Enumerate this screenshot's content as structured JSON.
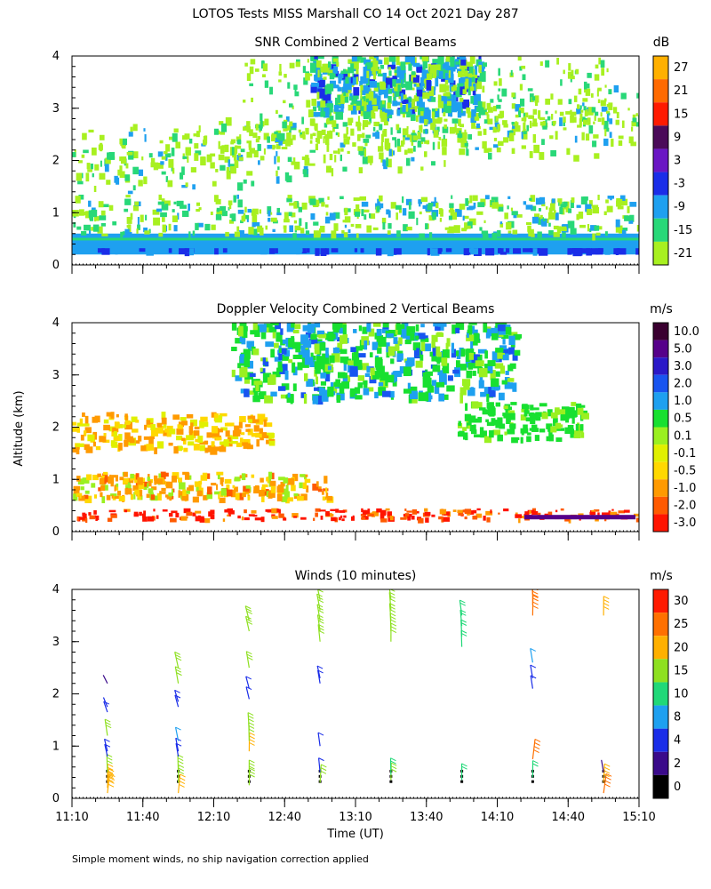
{
  "figure": {
    "title": "LOTOS Tests MISS Marshall CO  14 Oct 2021 Day 287",
    "ylabel": "Altitude (km)",
    "xlabel": "Time (UT)",
    "footnote": "Simple moment winds, no ship navigation correction applied",
    "x_ticks": [
      "11:10",
      "11:40",
      "12:10",
      "12:40",
      "13:10",
      "13:40",
      "14:10",
      "14:40",
      "15:10"
    ],
    "y_ticks": [
      "0",
      "1",
      "2",
      "3",
      "4"
    ]
  },
  "chart_data": [
    {
      "type": "heatmap",
      "title": "SNR Combined 2 Vertical Beams",
      "unit": "dB",
      "ylim": [
        0,
        4
      ],
      "colorbar": {
        "labels": [
          "27",
          "21",
          "15",
          "9",
          "3",
          "-3",
          "-9",
          "-15",
          "-21"
        ],
        "colors": [
          "#ffb000",
          "#ff6a00",
          "#ff1a00",
          "#4b0a59",
          "#6a16c4",
          "#1a2de8",
          "#1ea0f0",
          "#28d878",
          "#a8f020"
        ]
      }
    },
    {
      "type": "heatmap",
      "title": "Doppler Velocity Combined 2 Vertical Beams",
      "unit": "m/s",
      "ylim": [
        0,
        4
      ],
      "colorbar": {
        "labels": [
          "10.0",
          "5.0",
          "3.0",
          "2.0",
          "1.0",
          "0.5",
          "0.1",
          "-0.1",
          "-0.5",
          "-1.0",
          "-2.0",
          "-3.0"
        ],
        "colors": [
          "#3a0030",
          "#56008a",
          "#2a18c8",
          "#1854f0",
          "#1ea0f0",
          "#18e030",
          "#9af020",
          "#e0f000",
          "#ffd800",
          "#ff9a00",
          "#ff5a00",
          "#ff1400"
        ]
      }
    },
    {
      "type": "scatter",
      "title": "Winds (10 minutes)",
      "unit": "m/s",
      "ylim": [
        0,
        4
      ],
      "colorbar": {
        "labels": [
          "30",
          "25",
          "20",
          "15",
          "10",
          "8",
          "4",
          "2",
          "0"
        ],
        "colors": [
          "#ff1a00",
          "#ff7000",
          "#ffb000",
          "#8ee020",
          "#20d878",
          "#1ea0f0",
          "#1a2de8",
          "#3a0a8a",
          "#000000"
        ]
      },
      "profiles": [
        {
          "time": "11:25",
          "barbs": [
            {
              "alt": 0.1,
              "speed": 24
            },
            {
              "alt": 0.2,
              "speed": 22
            },
            {
              "alt": 0.3,
              "speed": 20
            },
            {
              "alt": 0.5,
              "speed": 18
            },
            {
              "alt": 0.8,
              "speed": 5
            },
            {
              "alt": 0.9,
              "speed": 6
            },
            {
              "alt": 1.2,
              "speed": 16
            },
            {
              "alt": 1.65,
              "speed": 5
            },
            {
              "alt": 1.75,
              "speed": 4
            },
            {
              "alt": 2.2,
              "speed": 3
            }
          ]
        },
        {
          "time": "11:55",
          "barbs": [
            {
              "alt": 0.1,
              "speed": 22
            },
            {
              "alt": 0.3,
              "speed": 17
            },
            {
              "alt": 0.5,
              "speed": 16
            },
            {
              "alt": 0.8,
              "speed": 6
            },
            {
              "alt": 0.9,
              "speed": 7
            },
            {
              "alt": 1.1,
              "speed": 9
            },
            {
              "alt": 1.75,
              "speed": 6
            },
            {
              "alt": 1.85,
              "speed": 7
            },
            {
              "alt": 2.2,
              "speed": 19
            },
            {
              "alt": 2.5,
              "speed": 18
            }
          ]
        },
        {
          "time": "12:25",
          "barbs": [
            {
              "alt": 0.25,
              "speed": 15
            },
            {
              "alt": 0.4,
              "speed": 16
            },
            {
              "alt": 0.9,
              "speed": 20
            },
            {
              "alt": 1.1,
              "speed": 19
            },
            {
              "alt": 1.3,
              "speed": 18
            },
            {
              "alt": 1.9,
              "speed": 6
            },
            {
              "alt": 2.1,
              "speed": 7
            },
            {
              "alt": 2.5,
              "speed": 17
            },
            {
              "alt": 3.2,
              "speed": 15
            },
            {
              "alt": 3.4,
              "speed": 16
            }
          ]
        },
        {
          "time": "12:55",
          "barbs": [
            {
              "alt": 0.3,
              "speed": 19
            },
            {
              "alt": 0.5,
              "speed": 7
            },
            {
              "alt": 1.0,
              "speed": 6
            },
            {
              "alt": 2.2,
              "speed": 6
            },
            {
              "alt": 2.3,
              "speed": 5
            },
            {
              "alt": 3.0,
              "speed": 17
            },
            {
              "alt": 3.2,
              "speed": 16
            },
            {
              "alt": 3.4,
              "speed": 17
            },
            {
              "alt": 3.6,
              "speed": 18
            },
            {
              "alt": 3.8,
              "speed": 19
            }
          ]
        },
        {
          "time": "13:25",
          "barbs": [
            {
              "alt": 0.35,
              "speed": 15
            },
            {
              "alt": 0.45,
              "speed": 14
            },
            {
              "alt": 3.0,
              "speed": 19
            },
            {
              "alt": 3.2,
              "speed": 18
            },
            {
              "alt": 3.4,
              "speed": 17
            },
            {
              "alt": 3.6,
              "speed": 19
            },
            {
              "alt": 3.8,
              "speed": 18
            }
          ]
        },
        {
          "time": "13:55",
          "barbs": [
            {
              "alt": 0.35,
              "speed": 13
            },
            {
              "alt": 2.9,
              "speed": 13
            },
            {
              "alt": 3.1,
              "speed": 14
            },
            {
              "alt": 3.3,
              "speed": 13
            },
            {
              "alt": 3.5,
              "speed": 12
            }
          ]
        },
        {
          "time": "14:25",
          "barbs": [
            {
              "alt": 0.4,
              "speed": 14
            },
            {
              "alt": 0.75,
              "speed": 27
            },
            {
              "alt": 2.1,
              "speed": 5
            },
            {
              "alt": 2.3,
              "speed": 6
            },
            {
              "alt": 2.6,
              "speed": 9
            },
            {
              "alt": 3.5,
              "speed": 28
            },
            {
              "alt": 3.7,
              "speed": 29
            },
            {
              "alt": 3.9,
              "speed": 27
            }
          ]
        },
        {
          "time": "14:55",
          "barbs": [
            {
              "alt": 0.1,
              "speed": 26
            },
            {
              "alt": 0.3,
              "speed": 21
            },
            {
              "alt": 0.5,
              "speed": 3
            },
            {
              "alt": 3.5,
              "speed": 22
            }
          ]
        }
      ]
    }
  ]
}
